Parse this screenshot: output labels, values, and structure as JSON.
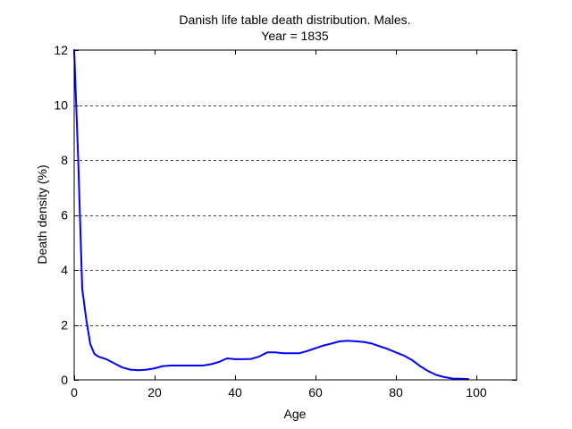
{
  "chart_data": {
    "type": "line",
    "title": "Danish life table death distribution. Males.",
    "subtitle": "Year = 1835",
    "xlabel": "Age",
    "ylabel": "Death density (%)",
    "xlim": [
      0,
      110
    ],
    "ylim": [
      0,
      12
    ],
    "xticks": [
      0,
      20,
      40,
      60,
      80,
      100
    ],
    "yticks": [
      0,
      2,
      4,
      6,
      8,
      10,
      12
    ],
    "grid": "horizontal dashed",
    "line_color": "#0000ff",
    "series": [
      {
        "x": [
          0,
          1,
          2,
          3,
          4,
          5,
          6,
          8,
          10,
          12,
          14,
          16,
          18,
          20,
          22,
          24,
          26,
          28,
          30,
          32,
          34,
          36,
          38,
          40,
          42,
          44,
          46,
          48,
          50,
          52,
          54,
          56,
          58,
          60,
          62,
          64,
          66,
          68,
          70,
          72,
          74,
          76,
          78,
          80,
          82,
          84,
          86,
          88,
          90,
          92,
          94,
          96,
          98
        ],
        "y": [
          12.0,
          8.0,
          3.3,
          2.2,
          1.3,
          0.95,
          0.85,
          0.75,
          0.6,
          0.45,
          0.37,
          0.35,
          0.37,
          0.42,
          0.5,
          0.52,
          0.52,
          0.52,
          0.52,
          0.52,
          0.57,
          0.65,
          0.78,
          0.75,
          0.75,
          0.76,
          0.85,
          1.0,
          1.0,
          0.97,
          0.97,
          0.97,
          1.05,
          1.15,
          1.25,
          1.32,
          1.4,
          1.42,
          1.4,
          1.38,
          1.32,
          1.22,
          1.12,
          1.0,
          0.88,
          0.72,
          0.5,
          0.32,
          0.18,
          0.1,
          0.05,
          0.04,
          0.03
        ]
      }
    ]
  }
}
